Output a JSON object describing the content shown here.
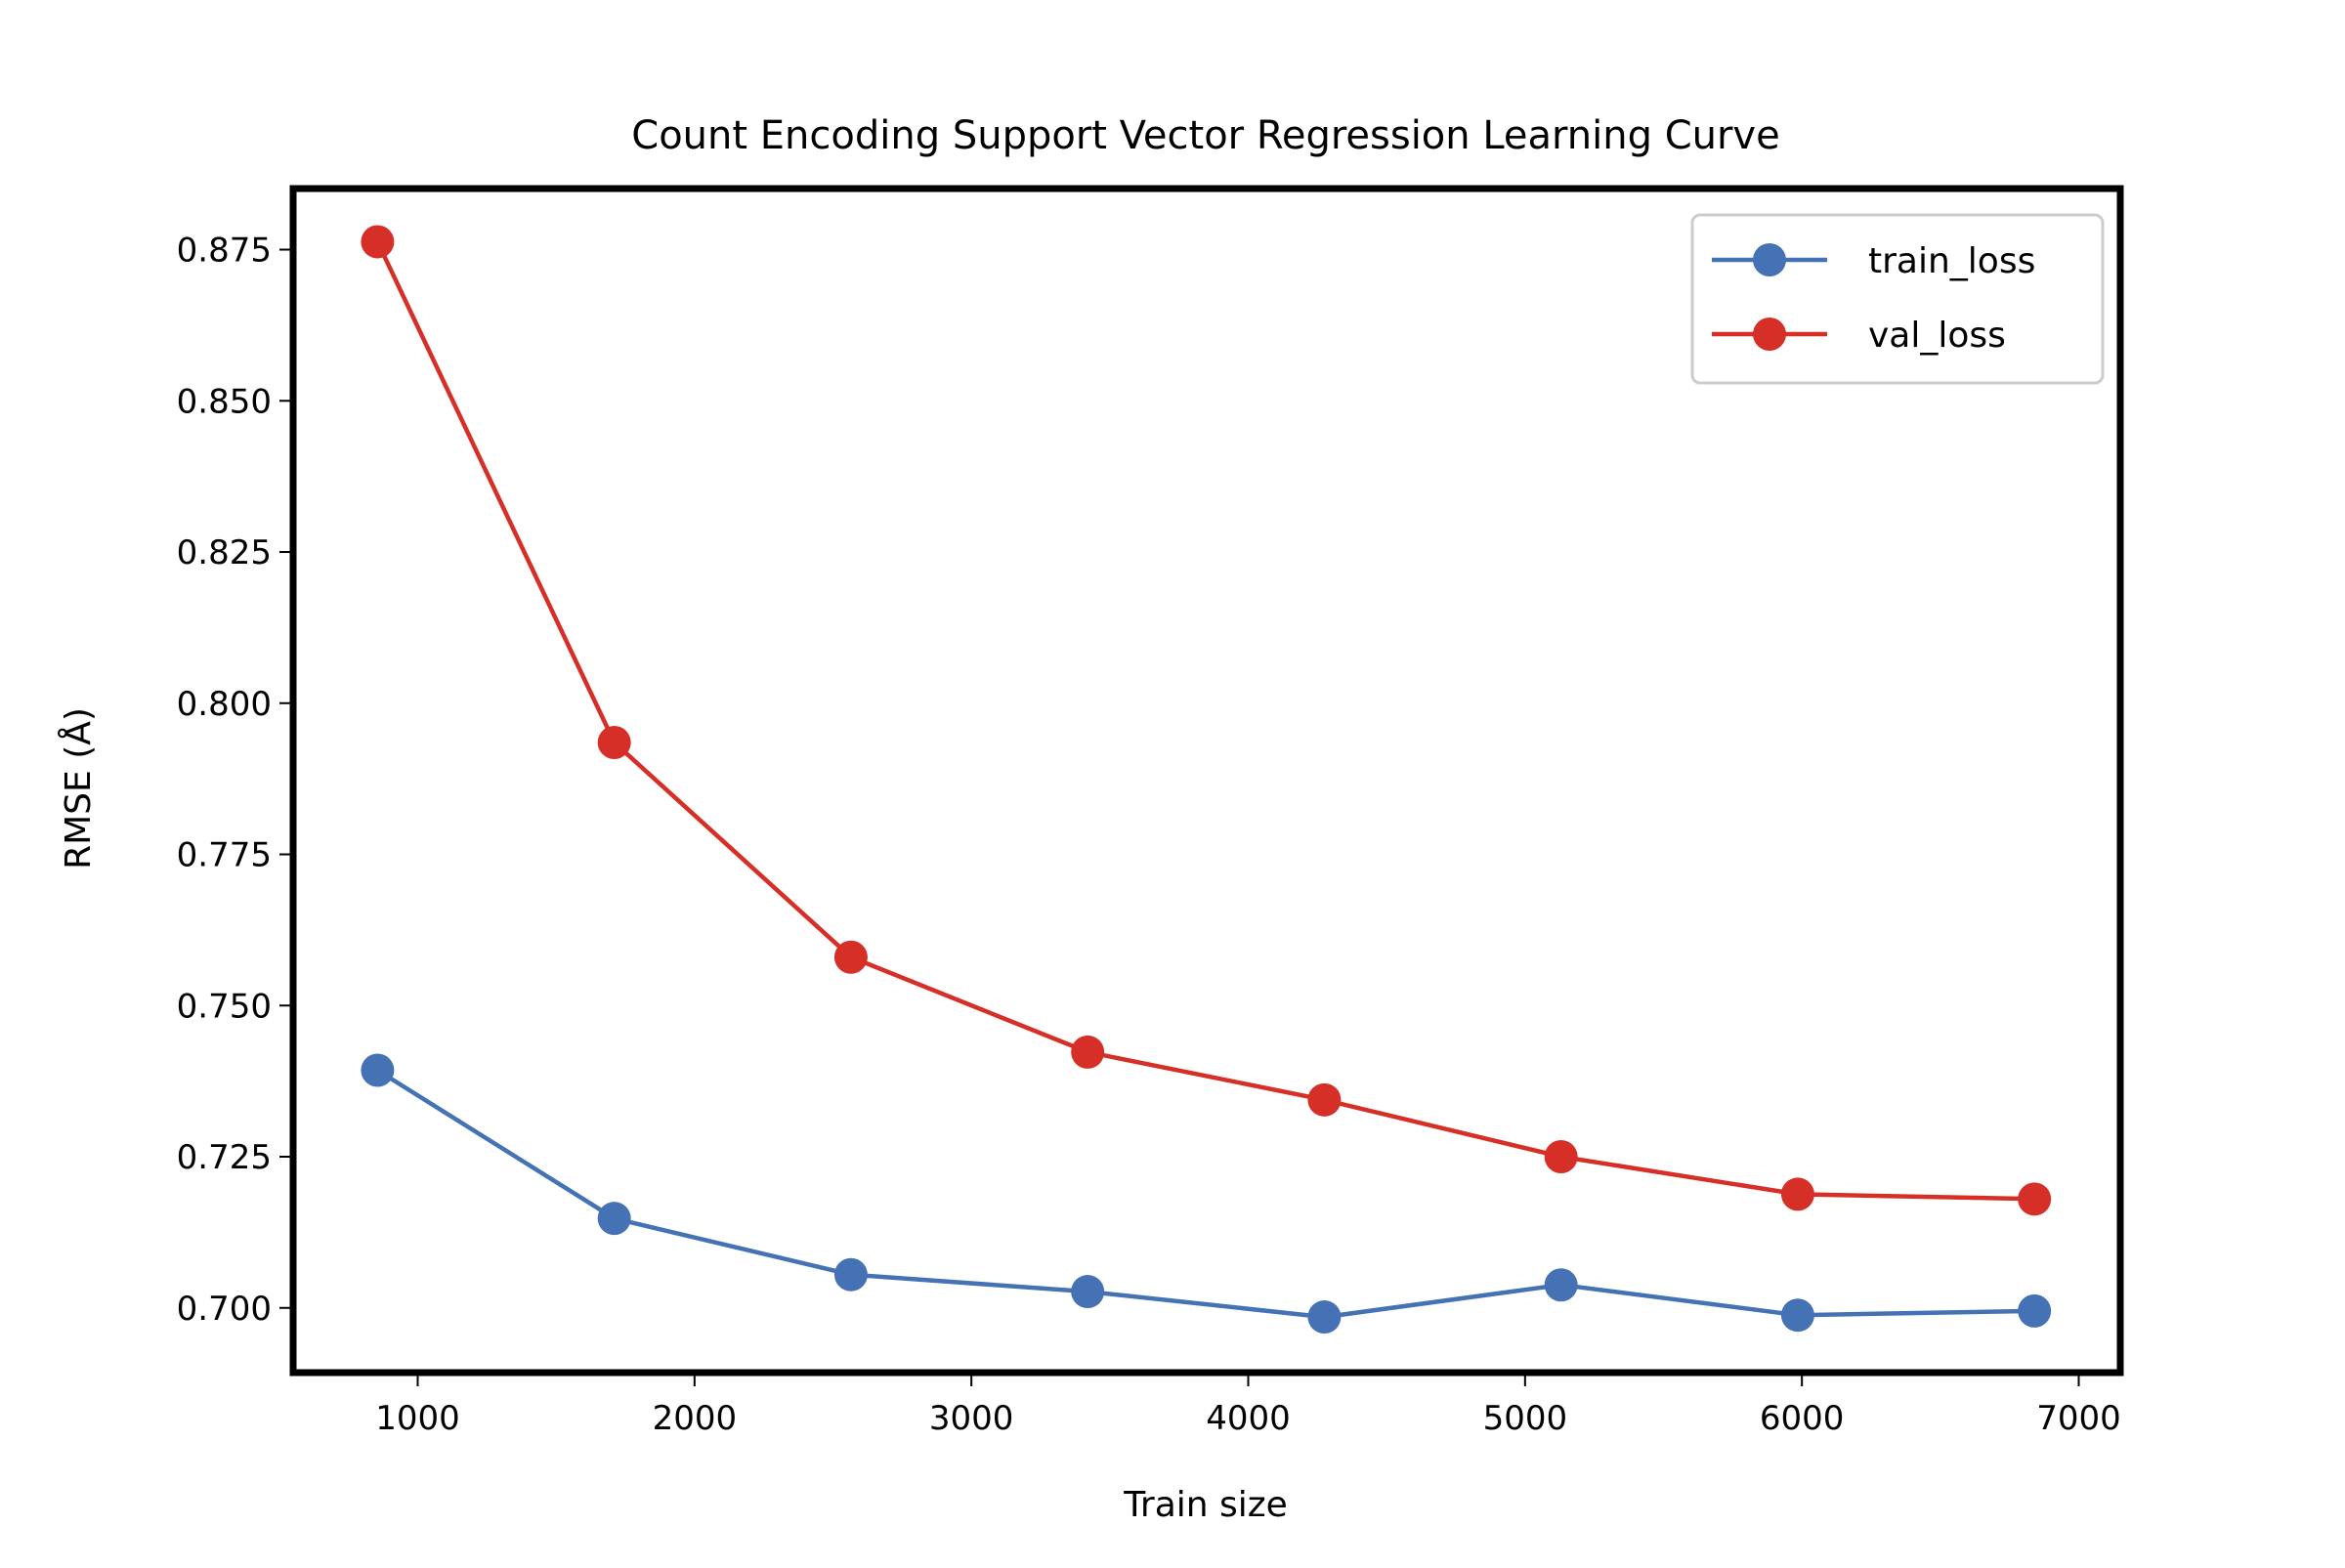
{
  "chart_data": {
    "type": "line",
    "title": "Count Encoding Support Vector Regression Learning Curve",
    "xlabel": "Train size",
    "ylabel": "RMSE (Å)",
    "x": [
      855,
      1710,
      2565,
      3420,
      4275,
      5130,
      5985,
      6840
    ],
    "series": [
      {
        "name": "train_loss",
        "color": "#4472b5",
        "values": [
          0.7393,
          0.7148,
          0.7055,
          0.7027,
          0.6985,
          0.7038,
          0.6988,
          0.6995
        ]
      },
      {
        "name": "val_loss",
        "color": "#d62f28",
        "values": [
          0.8763,
          0.7935,
          0.758,
          0.7423,
          0.7344,
          0.725,
          0.7188,
          0.718
        ]
      }
    ],
    "xlim": [
      550,
      7150
    ],
    "ylim": [
      0.6893,
      0.8851
    ],
    "xticks": [
      1000,
      2000,
      3000,
      4000,
      5000,
      6000,
      7000
    ],
    "xtick_labels": [
      "1000",
      "2000",
      "3000",
      "4000",
      "5000",
      "6000",
      "7000"
    ],
    "yticks": [
      0.7,
      0.725,
      0.75,
      0.775,
      0.8,
      0.825,
      0.85,
      0.875
    ],
    "ytick_labels": [
      "0.700",
      "0.725",
      "0.750",
      "0.775",
      "0.800",
      "0.825",
      "0.850",
      "0.875"
    ],
    "grid": false,
    "legend_position": "top-right",
    "markers": "circle"
  }
}
